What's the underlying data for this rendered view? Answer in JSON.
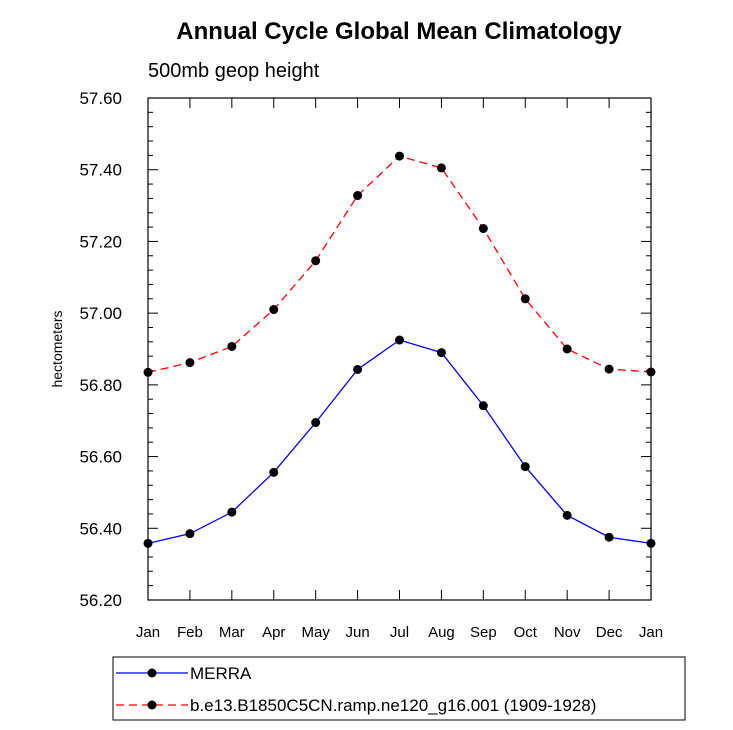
{
  "chart_data": {
    "type": "line",
    "title": "Annual Cycle Global Mean Climatology",
    "subtitle": "500mb geop height",
    "ylabel": "hectometers",
    "xlabel": "",
    "ylim": [
      56.2,
      57.6
    ],
    "ytick_labels": [
      "56.20",
      "56.40",
      "56.60",
      "56.80",
      "57.00",
      "57.20",
      "57.40",
      "57.60"
    ],
    "categories": [
      "Jan",
      "Feb",
      "Mar",
      "Apr",
      "May",
      "Jun",
      "Jul",
      "Aug",
      "Sep",
      "Oct",
      "Nov",
      "Dec",
      "Jan"
    ],
    "series": [
      {
        "name": "MERRA",
        "color": "#0000ff",
        "dash": "solid",
        "values": [
          56.358,
          56.385,
          56.445,
          56.556,
          56.695,
          56.843,
          56.925,
          56.89,
          56.742,
          56.572,
          56.436,
          56.375,
          56.358
        ]
      },
      {
        "name": "b.e13.B1850C5CN.ramp.ne120_g16.001 (1909-1928)",
        "color": "#ff0000",
        "dash": "dashed",
        "values": [
          56.835,
          56.862,
          56.907,
          57.01,
          57.146,
          57.328,
          57.438,
          57.405,
          57.236,
          57.04,
          56.9,
          56.844,
          56.836
        ]
      }
    ],
    "grid": false,
    "legend_position": "bottom"
  }
}
